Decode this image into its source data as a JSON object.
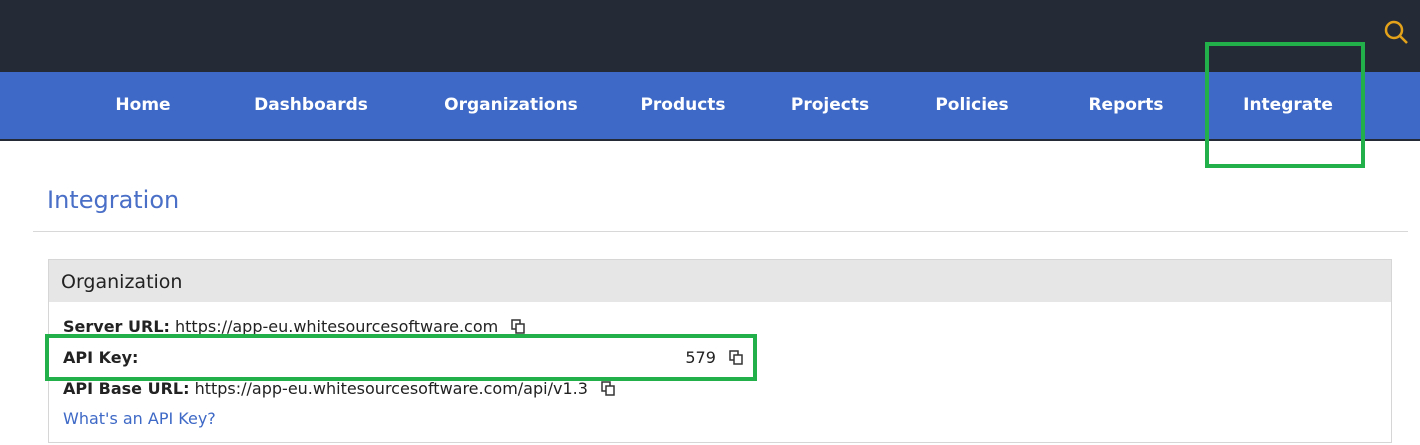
{
  "nav": {
    "items": [
      "Home",
      "Dashboards",
      "Organizations",
      "Products",
      "Projects",
      "Policies",
      "Reports",
      "Integrate"
    ],
    "active": "Integrate"
  },
  "page": {
    "title": "Integration"
  },
  "panel": {
    "heading": "Organization",
    "server_url_label": "Server URL:",
    "server_url": "https://app-eu.whitesourcesoftware.com",
    "api_key_label": "API Key:",
    "api_key": "579",
    "api_base_url_label": "API Base URL:",
    "api_base_url": "https://app-eu.whitesourcesoftware.com/api/v1.3",
    "help_link": "What's an API Key?"
  },
  "colors": {
    "topbar": "#252b36",
    "nav": "#3e69c6",
    "highlight": "#22b04b",
    "search_icon": "#e3a21a"
  }
}
